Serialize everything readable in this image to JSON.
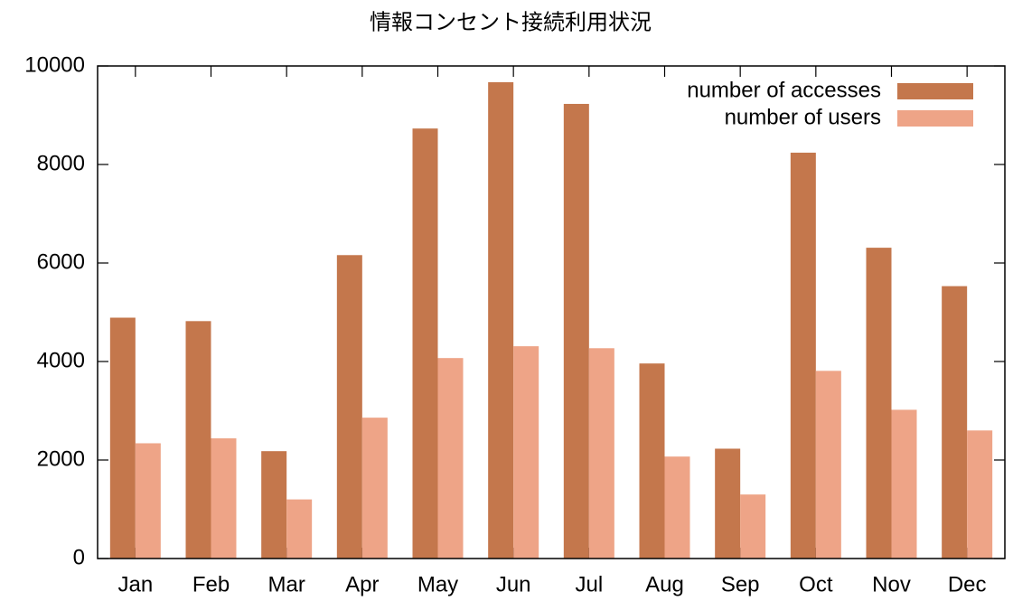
{
  "chart_data": {
    "type": "bar",
    "title": "情報コンセント接続利用状況",
    "categories": [
      "Jan",
      "Feb",
      "Mar",
      "Apr",
      "May",
      "Jun",
      "Jul",
      "Aug",
      "Sep",
      "Oct",
      "Nov",
      "Dec"
    ],
    "series": [
      {
        "name": "number of accesses",
        "color": "#c4774c",
        "values": [
          4890,
          4820,
          2180,
          6160,
          8730,
          9670,
          9230,
          3960,
          2230,
          8240,
          6310,
          5530
        ]
      },
      {
        "name": "number of users",
        "color": "#eea487",
        "values": [
          2340,
          2440,
          1200,
          2860,
          4070,
          4310,
          4270,
          2070,
          1300,
          3810,
          3020,
          2600
        ]
      }
    ],
    "ylim": [
      0,
      10000
    ],
    "yticks": [
      0,
      2000,
      4000,
      6000,
      8000,
      10000
    ],
    "grid": false,
    "legend": "top-right"
  }
}
